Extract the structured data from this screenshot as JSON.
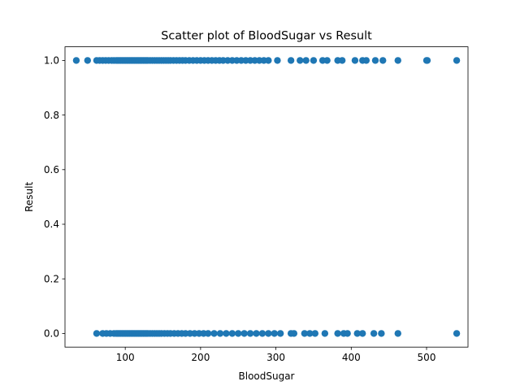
{
  "chart_data": {
    "type": "scatter",
    "title": "Scatter plot of BloodSugar vs Result",
    "xlabel": "BloodSugar",
    "ylabel": "Result",
    "xlim": [
      20,
      555
    ],
    "ylim": [
      -0.05,
      1.05
    ],
    "xticks": [
      100,
      200,
      300,
      400,
      500
    ],
    "yticks": [
      0.0,
      0.2,
      0.4,
      0.6,
      0.8,
      1.0
    ],
    "xtick_labels": [
      "100",
      "200",
      "300",
      "400",
      "500"
    ],
    "ytick_labels": [
      "0.0",
      "0.2",
      "0.4",
      "0.6",
      "0.8",
      "1.0"
    ],
    "grid": false,
    "marker_color": "#1f77b4",
    "series": [
      {
        "values_y1_x": [
          35,
          50,
          62,
          66,
          70,
          74,
          78,
          82,
          85,
          88,
          90,
          92,
          94,
          96,
          98,
          100,
          102,
          104,
          106,
          108,
          110,
          112,
          114,
          116,
          118,
          120,
          122,
          124,
          126,
          128,
          130,
          133,
          136,
          139,
          142,
          145,
          148,
          151,
          154,
          157,
          160,
          164,
          168,
          172,
          176,
          180,
          185,
          190,
          195,
          200,
          205,
          210,
          215,
          220,
          225,
          230,
          236,
          242,
          248,
          254,
          260,
          266,
          272,
          278,
          284,
          290,
          302,
          320,
          332,
          340,
          350,
          362,
          368,
          382,
          388,
          405,
          415,
          420,
          432,
          442,
          462,
          500,
          501,
          540
        ],
        "values_y0_x": [
          62,
          70,
          75,
          80,
          85,
          88,
          90,
          92,
          94,
          96,
          98,
          100,
          102,
          104,
          106,
          108,
          110,
          112,
          114,
          116,
          118,
          120,
          122,
          124,
          126,
          128,
          130,
          133,
          136,
          139,
          142,
          145,
          148,
          152,
          156,
          160,
          165,
          170,
          175,
          180,
          186,
          192,
          198,
          204,
          210,
          218,
          226,
          234,
          242,
          250,
          258,
          266,
          274,
          282,
          290,
          298,
          306,
          320,
          324,
          338,
          345,
          352,
          365,
          382,
          390,
          395,
          408,
          415,
          430,
          440,
          462,
          540
        ]
      }
    ]
  }
}
